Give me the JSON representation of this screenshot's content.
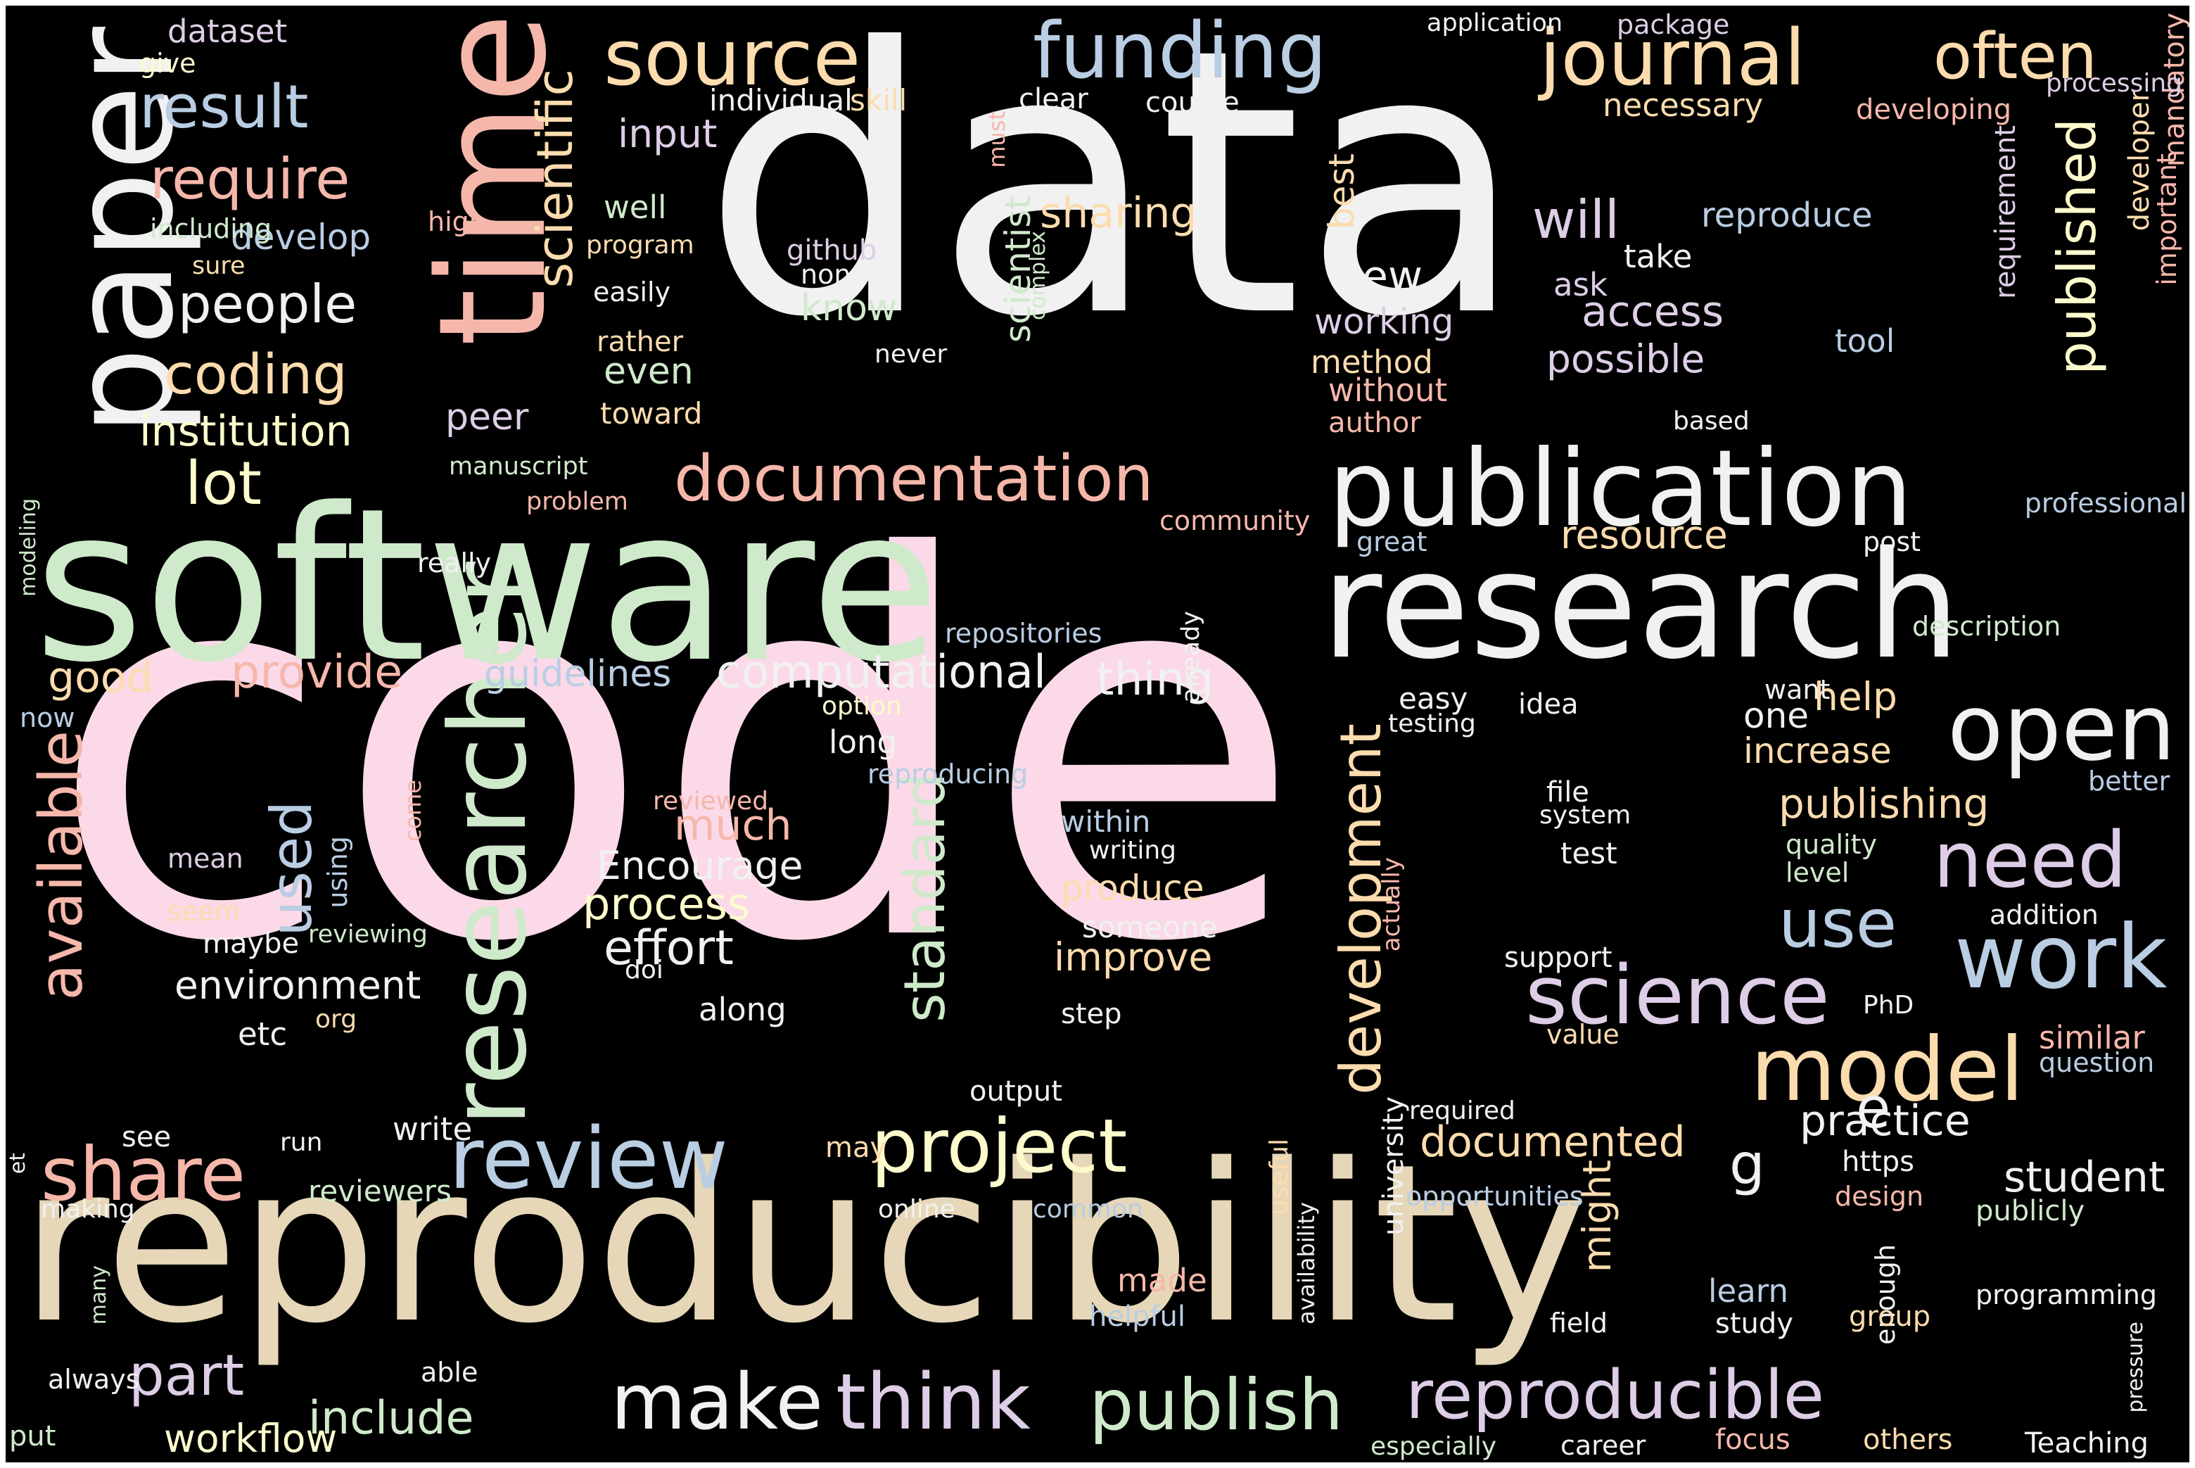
{
  "background_color": "#000000",
  "palette": {
    "white": "#f1f1f1",
    "pink": "#fbd9e8",
    "green": "#cfeacb",
    "beige": "#e6d7b8",
    "blue": "#b9cde3",
    "salmon": "#f6b7ab",
    "peach": "#fcdcae",
    "lavender": "#decde6",
    "cream": "#fdfbcc"
  },
  "words": [
    {
      "text": "data",
      "color": "white"
    },
    {
      "text": "code",
      "color": "pink"
    },
    {
      "text": "software",
      "color": "green"
    },
    {
      "text": "reproducibility",
      "color": "beige"
    },
    {
      "text": "research",
      "color": "white"
    },
    {
      "text": "time",
      "color": "salmon"
    },
    {
      "text": "paper",
      "color": "white"
    },
    {
      "text": "publication",
      "color": "white"
    },
    {
      "text": "journal",
      "color": "peach"
    },
    {
      "text": "funding",
      "color": "blue"
    },
    {
      "text": "source",
      "color": "peach"
    },
    {
      "text": "often",
      "color": "peach"
    },
    {
      "text": "result",
      "color": "blue"
    },
    {
      "text": "require",
      "color": "salmon"
    },
    {
      "text": "scientific",
      "color": "peach"
    },
    {
      "text": "people",
      "color": "white"
    },
    {
      "text": "coding",
      "color": "peach"
    },
    {
      "text": "documentation",
      "color": "salmon"
    },
    {
      "text": "open",
      "color": "white"
    },
    {
      "text": "need",
      "color": "lavender"
    },
    {
      "text": "work",
      "color": "blue"
    },
    {
      "text": "model",
      "color": "peach"
    },
    {
      "text": "science",
      "color": "lavender"
    },
    {
      "text": "use",
      "color": "blue"
    },
    {
      "text": "researcher",
      "color": "green"
    },
    {
      "text": "available",
      "color": "salmon"
    },
    {
      "text": "development",
      "color": "peach"
    },
    {
      "text": "standard",
      "color": "green"
    },
    {
      "text": "published",
      "color": "cream"
    },
    {
      "text": "review",
      "color": "blue"
    },
    {
      "text": "project",
      "color": "cream"
    },
    {
      "text": "share",
      "color": "salmon"
    },
    {
      "text": "make",
      "color": "white"
    },
    {
      "text": "think",
      "color": "lavender"
    },
    {
      "text": "publish",
      "color": "green"
    },
    {
      "text": "reproducible",
      "color": "lavender"
    },
    {
      "text": "part",
      "color": "lavender"
    },
    {
      "text": "include",
      "color": "green"
    },
    {
      "text": "workflow",
      "color": "cream"
    },
    {
      "text": "lot",
      "color": "cream"
    },
    {
      "text": "institution",
      "color": "cream"
    },
    {
      "text": "used",
      "color": "blue"
    },
    {
      "text": "computational",
      "color": "white"
    },
    {
      "text": "good",
      "color": "peach"
    },
    {
      "text": "provide",
      "color": "salmon"
    },
    {
      "text": "guidelines",
      "color": "blue"
    },
    {
      "text": "thing",
      "color": "white"
    },
    {
      "text": "will",
      "color": "lavender"
    },
    {
      "text": "access",
      "color": "lavender"
    },
    {
      "text": "possible",
      "color": "lavender"
    },
    {
      "text": "new",
      "color": "white"
    },
    {
      "text": "sharing",
      "color": "peach"
    },
    {
      "text": "scientist",
      "color": "green"
    },
    {
      "text": "best",
      "color": "peach"
    },
    {
      "text": "might",
      "color": "peach"
    },
    {
      "text": "documented",
      "color": "peach"
    },
    {
      "text": "practice",
      "color": "white"
    },
    {
      "text": "e",
      "color": "white"
    },
    {
      "text": "g",
      "color": "white"
    },
    {
      "text": "publishing",
      "color": "peach"
    },
    {
      "text": "help",
      "color": "peach"
    },
    {
      "text": "one",
      "color": "white"
    },
    {
      "text": "increase",
      "color": "peach"
    },
    {
      "text": "resource",
      "color": "peach"
    },
    {
      "text": "process",
      "color": "cream"
    },
    {
      "text": "effort",
      "color": "white"
    },
    {
      "text": "Encourage",
      "color": "white"
    },
    {
      "text": "much",
      "color": "salmon"
    },
    {
      "text": "environment",
      "color": "white"
    },
    {
      "text": "improve",
      "color": "peach"
    },
    {
      "text": "student",
      "color": "white"
    },
    {
      "text": "dataset",
      "color": "lavender"
    },
    {
      "text": "input",
      "color": "lavender"
    },
    {
      "text": "develop",
      "color": "blue"
    },
    {
      "text": "well",
      "color": "green"
    },
    {
      "text": "even",
      "color": "green"
    },
    {
      "text": "peer",
      "color": "lavender"
    },
    {
      "text": "toward",
      "color": "peach"
    },
    {
      "text": "know",
      "color": "green"
    },
    {
      "text": "reproduce",
      "color": "blue"
    },
    {
      "text": "take",
      "color": "white"
    },
    {
      "text": "ask",
      "color": "lavender"
    },
    {
      "text": "tool",
      "color": "blue"
    },
    {
      "text": "working",
      "color": "lavender"
    },
    {
      "text": "method",
      "color": "peach"
    },
    {
      "text": "without",
      "color": "salmon"
    },
    {
      "text": "author",
      "color": "salmon"
    },
    {
      "text": "requirement",
      "color": "lavender"
    },
    {
      "text": "developer",
      "color": "peach"
    },
    {
      "text": "important",
      "color": "salmon"
    },
    {
      "text": "mandatory",
      "color": "salmon"
    },
    {
      "text": "processing",
      "color": "lavender"
    },
    {
      "text": "necessary",
      "color": "peach"
    },
    {
      "text": "developing",
      "color": "salmon"
    },
    {
      "text": "clear",
      "color": "white"
    },
    {
      "text": "course",
      "color": "white"
    },
    {
      "text": "application",
      "color": "white"
    },
    {
      "text": "package",
      "color": "lavender"
    },
    {
      "text": "individual",
      "color": "white"
    },
    {
      "text": "skill",
      "color": "peach"
    },
    {
      "text": "must",
      "color": "salmon"
    },
    {
      "text": "give",
      "color": "cream"
    },
    {
      "text": "including",
      "color": "green"
    },
    {
      "text": "high",
      "color": "salmon"
    },
    {
      "text": "sure",
      "color": "peach"
    },
    {
      "text": "program",
      "color": "peach"
    },
    {
      "text": "easily",
      "color": "white"
    },
    {
      "text": "rather",
      "color": "peach"
    },
    {
      "text": "github",
      "color": "lavender"
    },
    {
      "text": "non",
      "color": "white"
    },
    {
      "text": "never",
      "color": "white"
    },
    {
      "text": "complex",
      "color": "green"
    },
    {
      "text": "based",
      "color": "white"
    },
    {
      "text": "professional",
      "color": "blue"
    },
    {
      "text": "post",
      "color": "white"
    },
    {
      "text": "great",
      "color": "blue"
    },
    {
      "text": "community",
      "color": "salmon"
    },
    {
      "text": "manuscript",
      "color": "green"
    },
    {
      "text": "problem",
      "color": "salmon"
    },
    {
      "text": "really",
      "color": "white"
    },
    {
      "text": "modeling",
      "color": "green"
    },
    {
      "text": "now",
      "color": "blue"
    },
    {
      "text": "repositories",
      "color": "blue"
    },
    {
      "text": "already",
      "color": "white"
    },
    {
      "text": "option",
      "color": "cream"
    },
    {
      "text": "long",
      "color": "white"
    },
    {
      "text": "reproducing",
      "color": "blue"
    },
    {
      "text": "easy",
      "color": "white"
    },
    {
      "text": "testing",
      "color": "white"
    },
    {
      "text": "idea",
      "color": "white"
    },
    {
      "text": "want",
      "color": "white"
    },
    {
      "text": "description",
      "color": "green"
    },
    {
      "text": "better",
      "color": "blue"
    },
    {
      "text": "file",
      "color": "white"
    },
    {
      "text": "system",
      "color": "white"
    },
    {
      "text": "test",
      "color": "white"
    },
    {
      "text": "quality",
      "color": "green"
    },
    {
      "text": "level",
      "color": "green"
    },
    {
      "text": "addition",
      "color": "white"
    },
    {
      "text": "support",
      "color": "white"
    },
    {
      "text": "PhD",
      "color": "white"
    },
    {
      "text": "value",
      "color": "peach"
    },
    {
      "text": "similar",
      "color": "salmon"
    },
    {
      "text": "question",
      "color": "blue"
    },
    {
      "text": "within",
      "color": "blue"
    },
    {
      "text": "writing",
      "color": "white"
    },
    {
      "text": "produce",
      "color": "peach"
    },
    {
      "text": "someone",
      "color": "white"
    },
    {
      "text": "step",
      "color": "white"
    },
    {
      "text": "actually",
      "color": "salmon"
    },
    {
      "text": "reviewed",
      "color": "salmon"
    },
    {
      "text": "mean",
      "color": "lavender"
    },
    {
      "text": "seem",
      "color": "peach"
    },
    {
      "text": "using",
      "color": "blue"
    },
    {
      "text": "come",
      "color": "salmon"
    },
    {
      "text": "maybe",
      "color": "white"
    },
    {
      "text": "reviewing",
      "color": "green"
    },
    {
      "text": "doi",
      "color": "white"
    },
    {
      "text": "along",
      "color": "white"
    },
    {
      "text": "org",
      "color": "peach"
    },
    {
      "text": "etc",
      "color": "white"
    },
    {
      "text": "output",
      "color": "white"
    },
    {
      "text": "see",
      "color": "white"
    },
    {
      "text": "run",
      "color": "white"
    },
    {
      "text": "write",
      "color": "white"
    },
    {
      "text": "may",
      "color": "peach"
    },
    {
      "text": "reviewers",
      "color": "green"
    },
    {
      "text": "et",
      "color": "white"
    },
    {
      "text": "making",
      "color": "white"
    },
    {
      "text": "online",
      "color": "white"
    },
    {
      "text": "common",
      "color": "blue"
    },
    {
      "text": "useful",
      "color": "peach"
    },
    {
      "text": "availability",
      "color": "white"
    },
    {
      "text": "university",
      "color": "white"
    },
    {
      "text": "required",
      "color": "white"
    },
    {
      "text": "opportunities",
      "color": "blue"
    },
    {
      "text": "https",
      "color": "white"
    },
    {
      "text": "design",
      "color": "salmon"
    },
    {
      "text": "publicly",
      "color": "green"
    },
    {
      "text": "enough",
      "color": "white"
    },
    {
      "text": "programming",
      "color": "white"
    },
    {
      "text": "learn",
      "color": "blue"
    },
    {
      "text": "study",
      "color": "white"
    },
    {
      "text": "group",
      "color": "peach"
    },
    {
      "text": "field",
      "color": "white"
    },
    {
      "text": "made",
      "color": "salmon"
    },
    {
      "text": "helpful",
      "color": "blue"
    },
    {
      "text": "many",
      "color": "green"
    },
    {
      "text": "always",
      "color": "white"
    },
    {
      "text": "able",
      "color": "white"
    },
    {
      "text": "put",
      "color": "green"
    },
    {
      "text": "especially",
      "color": "green"
    },
    {
      "text": "career",
      "color": "white"
    },
    {
      "text": "focus",
      "color": "salmon"
    },
    {
      "text": "others",
      "color": "peach"
    },
    {
      "text": "Teaching",
      "color": "white"
    },
    {
      "text": "pressure",
      "color": "white"
    },
    {
      "text": "become",
      "color": "salmon"
    },
    {
      "text": "familiar",
      "color": "white"
    }
  ]
}
